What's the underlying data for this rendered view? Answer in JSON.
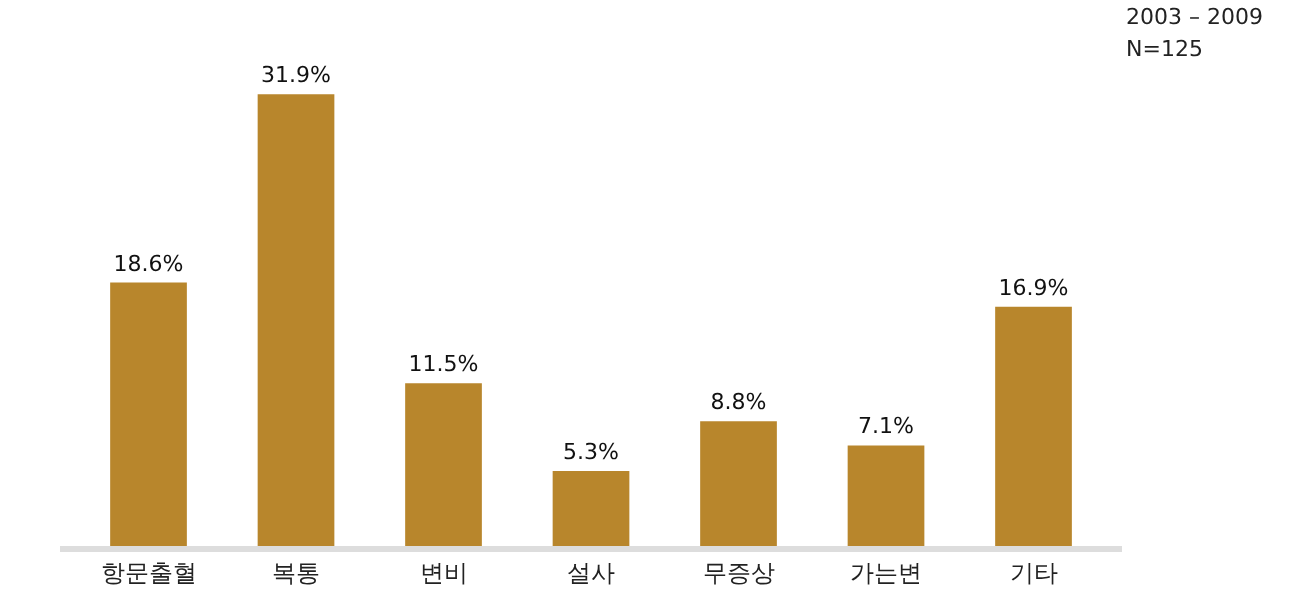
{
  "chart_data": {
    "type": "bar",
    "categories": [
      "항문출혈",
      "복통",
      "변비",
      "설사",
      "무증상",
      "가는변",
      "기타"
    ],
    "values": [
      18.6,
      31.9,
      11.5,
      5.3,
      8.8,
      7.1,
      16.9
    ],
    "value_labels": [
      "18.6%",
      "31.9%",
      "11.5%",
      "5.3%",
      "8.8%",
      "7.1%",
      "16.9%"
    ],
    "color": "#b8862c",
    "annotations": [
      "2003 – 2009",
      "N=125"
    ]
  }
}
